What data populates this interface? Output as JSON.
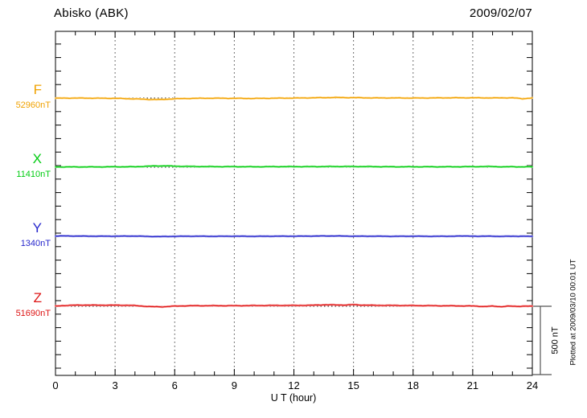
{
  "chart_data": {
    "type": "line",
    "title": "Abisko (ABK)",
    "date": "2009/02/07",
    "xlabel": "U T (hour)",
    "xlim": [
      0,
      24
    ],
    "x_major_ticks": [
      0,
      3,
      6,
      9,
      12,
      15,
      18,
      21,
      24
    ],
    "x_minor_step_hours": 1,
    "grid_hours": [
      3,
      6,
      9,
      12,
      15,
      18,
      21
    ],
    "y_minor_tick_nT": 100,
    "trace_spacing_nT": 500,
    "grid_on": true,
    "scale_bar": {
      "label": "500 nT",
      "span_nT": 500
    },
    "plotted_at": "Plotted at 2009/03/10 00:01 UT",
    "series": [
      {
        "name": "F",
        "value_label": "52960nT",
        "base_nT": 52960,
        "color": "#F0A202",
        "light_color": "#FFD98F",
        "noise_nT": 2,
        "anchors": [
          [
            0,
            -1
          ],
          [
            1,
            0
          ],
          [
            2,
            -1
          ],
          [
            3,
            -2
          ],
          [
            4,
            -6
          ],
          [
            4.7,
            -10
          ],
          [
            5.3,
            -11
          ],
          [
            6,
            -5
          ],
          [
            7,
            -2
          ],
          [
            8,
            -1
          ],
          [
            9,
            -2
          ],
          [
            10,
            -3
          ],
          [
            11,
            -1
          ],
          [
            12,
            0
          ],
          [
            13,
            2
          ],
          [
            14,
            4
          ],
          [
            15,
            3
          ],
          [
            16,
            1
          ],
          [
            17,
            1
          ],
          [
            18,
            0
          ],
          [
            19,
            1
          ],
          [
            20,
            2
          ],
          [
            21,
            2
          ],
          [
            22,
            1
          ],
          [
            23,
            2
          ],
          [
            23.5,
            -5
          ],
          [
            24,
            1
          ]
        ]
      },
      {
        "name": "X",
        "value_label": "11410nT",
        "base_nT": 11410,
        "color": "#00CC11",
        "light_color": "#96EC96",
        "noise_nT": 2,
        "anchors": [
          [
            0,
            2
          ],
          [
            1,
            2
          ],
          [
            2,
            2
          ],
          [
            3,
            3
          ],
          [
            4,
            3
          ],
          [
            4.6,
            7
          ],
          [
            5,
            9
          ],
          [
            5.6,
            10
          ],
          [
            6,
            7
          ],
          [
            7,
            5
          ],
          [
            8,
            4
          ],
          [
            9,
            4
          ],
          [
            10,
            3
          ],
          [
            11,
            4
          ],
          [
            12,
            4
          ],
          [
            13,
            4
          ],
          [
            14,
            5
          ],
          [
            15,
            5
          ],
          [
            16,
            4
          ],
          [
            17,
            3
          ],
          [
            18,
            3
          ],
          [
            19,
            3
          ],
          [
            20,
            3
          ],
          [
            21,
            4
          ],
          [
            22,
            5
          ],
          [
            22.6,
            2
          ],
          [
            23,
            4
          ],
          [
            23.5,
            2
          ],
          [
            24,
            3
          ]
        ]
      },
      {
        "name": "Y",
        "value_label": "1340nT",
        "base_nT": 1340,
        "color": "#2626CC",
        "light_color": "#9C9CE8",
        "noise_nT": 1.5,
        "anchors": [
          [
            0,
            2
          ],
          [
            0.5,
            3
          ],
          [
            1,
            2
          ],
          [
            2,
            1
          ],
          [
            3,
            1
          ],
          [
            4,
            2
          ],
          [
            4.7,
            -1
          ],
          [
            5.3,
            -2
          ],
          [
            6,
            0
          ],
          [
            7,
            1
          ],
          [
            8,
            0
          ],
          [
            9,
            1
          ],
          [
            10,
            0
          ],
          [
            11,
            1
          ],
          [
            12,
            1
          ],
          [
            13,
            2
          ],
          [
            14,
            3
          ],
          [
            15,
            1
          ],
          [
            16,
            1
          ],
          [
            17,
            0
          ],
          [
            18,
            1
          ],
          [
            19,
            0
          ],
          [
            20,
            1
          ],
          [
            20.8,
            3
          ],
          [
            21.3,
            -1
          ],
          [
            21.8,
            3
          ],
          [
            22.3,
            -2
          ],
          [
            22.8,
            2
          ],
          [
            23.3,
            -1
          ],
          [
            23.7,
            2
          ],
          [
            24,
            0
          ]
        ]
      },
      {
        "name": "Z",
        "value_label": "51690nT",
        "base_nT": 51690,
        "color": "#DD1515",
        "light_color": "#F89C9C",
        "noise_nT": 2,
        "anchors": [
          [
            0,
            1
          ],
          [
            0.4,
            5
          ],
          [
            1,
            8
          ],
          [
            1.5,
            9
          ],
          [
            2,
            8
          ],
          [
            3,
            8
          ],
          [
            3.7,
            7
          ],
          [
            4.3,
            2
          ],
          [
            4.8,
            -3
          ],
          [
            5.4,
            -4
          ],
          [
            6,
            1
          ],
          [
            6.5,
            3
          ],
          [
            7,
            4
          ],
          [
            8,
            4
          ],
          [
            9,
            4
          ],
          [
            10,
            5
          ],
          [
            11,
            6
          ],
          [
            12,
            6
          ],
          [
            12.8,
            7
          ],
          [
            13.5,
            11
          ],
          [
            14,
            10
          ],
          [
            14.6,
            9
          ],
          [
            15,
            12
          ],
          [
            15.4,
            9
          ],
          [
            16,
            7
          ],
          [
            17,
            6
          ],
          [
            18,
            5
          ],
          [
            19,
            4
          ],
          [
            20,
            3
          ],
          [
            21,
            2
          ],
          [
            21.6,
            -2
          ],
          [
            22,
            1
          ],
          [
            22.4,
            -3
          ],
          [
            22.8,
            1
          ],
          [
            23.2,
            -1
          ],
          [
            23.6,
            1
          ],
          [
            24,
            0
          ]
        ]
      }
    ]
  }
}
